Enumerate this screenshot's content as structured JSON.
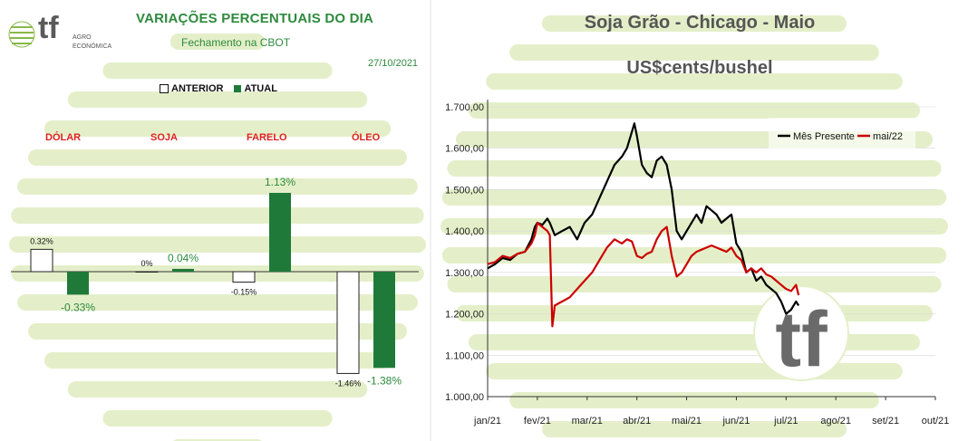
{
  "left": {
    "logo": {
      "letters": "tf",
      "line1": "AGRO",
      "line2": "ECONÔMICA"
    },
    "title": "VARIAÇÕES PERCENTUAIS DO DIA",
    "subtitle": "Fechamento na CBOT",
    "date": "27/10/2021",
    "legend": {
      "anterior": "ANTERIOR",
      "atual": "ATUAL"
    },
    "colors": {
      "atual": "#1f7a3a",
      "anterior": "#ffffff",
      "category": "#e02020",
      "title": "#2e8a3e"
    }
  },
  "right": {
    "title": "Soja Grão - Chicago - Maio",
    "subtitle": "US$cents/bushel",
    "colors": {
      "mes_presente": "#000000",
      "mai22": "#cc0000"
    }
  },
  "chart_data": [
    {
      "type": "bar",
      "categories": [
        "DÓLAR",
        "SOJA",
        "FARELO",
        "ÓLEO"
      ],
      "series": [
        {
          "name": "ANTERIOR",
          "values": [
            0.32,
            0.0,
            -0.15,
            -1.46
          ],
          "labels": [
            "0.32%",
            "0%",
            "-0.15%",
            "-1.46%"
          ]
        },
        {
          "name": "ATUAL",
          "values": [
            -0.33,
            0.04,
            1.13,
            -1.38
          ],
          "labels": [
            "-0.33%",
            "0.04%",
            "1.13%",
            "-1.38%"
          ]
        }
      ],
      "ylim": [
        -1.6,
        1.4
      ]
    },
    {
      "type": "line",
      "x_ticks": [
        "jan/21",
        "fev/21",
        "mar/21",
        "abr/21",
        "mai/21",
        "jun/21",
        "jul/21",
        "ago/21",
        "set/21",
        "out/21"
      ],
      "y_ticks": [
        "1.000,00",
        "1.100,00",
        "1.200,00",
        "1.300,00",
        "1.400,00",
        "1.500,00",
        "1.600,00",
        "1.700,00"
      ],
      "ylim": [
        1000,
        1700
      ],
      "legend_position": "top-right",
      "series": [
        {
          "name": "Mês Presente",
          "points": [
            [
              0.0,
              1310
            ],
            [
              0.15,
              1320
            ],
            [
              0.3,
              1335
            ],
            [
              0.45,
              1330
            ],
            [
              0.6,
              1345
            ],
            [
              0.75,
              1350
            ],
            [
              0.88,
              1380
            ],
            [
              0.95,
              1410
            ],
            [
              1.0,
              1420
            ],
            [
              1.1,
              1415
            ],
            [
              1.2,
              1430
            ],
            [
              1.25,
              1420
            ],
            [
              1.35,
              1390
            ],
            [
              1.5,
              1400
            ],
            [
              1.65,
              1410
            ],
            [
              1.8,
              1380
            ],
            [
              1.95,
              1420
            ],
            [
              2.1,
              1440
            ],
            [
              2.25,
              1480
            ],
            [
              2.4,
              1520
            ],
            [
              2.55,
              1560
            ],
            [
              2.7,
              1580
            ],
            [
              2.8,
              1600
            ],
            [
              2.9,
              1640
            ],
            [
              2.95,
              1660
            ],
            [
              3.0,
              1630
            ],
            [
              3.1,
              1560
            ],
            [
              3.2,
              1540
            ],
            [
              3.3,
              1530
            ],
            [
              3.4,
              1570
            ],
            [
              3.5,
              1580
            ],
            [
              3.6,
              1560
            ],
            [
              3.7,
              1500
            ],
            [
              3.8,
              1400
            ],
            [
              3.9,
              1380
            ],
            [
              4.0,
              1400
            ],
            [
              4.1,
              1420
            ],
            [
              4.2,
              1440
            ],
            [
              4.3,
              1420
            ],
            [
              4.4,
              1460
            ],
            [
              4.5,
              1450
            ],
            [
              4.6,
              1440
            ],
            [
              4.7,
              1420
            ],
            [
              4.8,
              1430
            ],
            [
              4.9,
              1440
            ],
            [
              5.0,
              1370
            ],
            [
              5.1,
              1350
            ],
            [
              5.2,
              1300
            ],
            [
              5.3,
              1310
            ],
            [
              5.4,
              1280
            ],
            [
              5.5,
              1290
            ],
            [
              5.6,
              1270
            ],
            [
              5.7,
              1260
            ],
            [
              5.8,
              1250
            ],
            [
              5.9,
              1230
            ],
            [
              6.0,
              1200
            ],
            [
              6.1,
              1210
            ],
            [
              6.2,
              1230
            ],
            [
              6.25,
              1220
            ]
          ]
        },
        {
          "name": "mai/22",
          "points": [
            [
              0.0,
              1320
            ],
            [
              0.15,
              1325
            ],
            [
              0.3,
              1340
            ],
            [
              0.45,
              1335
            ],
            [
              0.6,
              1345
            ],
            [
              0.75,
              1350
            ],
            [
              0.88,
              1370
            ],
            [
              0.95,
              1390
            ],
            [
              1.0,
              1420
            ],
            [
              1.1,
              1410
            ],
            [
              1.2,
              1400
            ],
            [
              1.25,
              1390
            ],
            [
              1.3,
              1170
            ],
            [
              1.35,
              1220
            ],
            [
              1.5,
              1230
            ],
            [
              1.65,
              1240
            ],
            [
              1.8,
              1260
            ],
            [
              1.95,
              1280
            ],
            [
              2.1,
              1300
            ],
            [
              2.25,
              1330
            ],
            [
              2.4,
              1360
            ],
            [
              2.55,
              1380
            ],
            [
              2.7,
              1370
            ],
            [
              2.8,
              1380
            ],
            [
              2.9,
              1375
            ],
            [
              3.0,
              1340
            ],
            [
              3.1,
              1335
            ],
            [
              3.2,
              1345
            ],
            [
              3.3,
              1350
            ],
            [
              3.4,
              1380
            ],
            [
              3.5,
              1400
            ],
            [
              3.6,
              1410
            ],
            [
              3.7,
              1340
            ],
            [
              3.8,
              1290
            ],
            [
              3.9,
              1300
            ],
            [
              4.0,
              1320
            ],
            [
              4.1,
              1340
            ],
            [
              4.2,
              1350
            ],
            [
              4.3,
              1355
            ],
            [
              4.4,
              1360
            ],
            [
              4.5,
              1365
            ],
            [
              4.6,
              1360
            ],
            [
              4.7,
              1355
            ],
            [
              4.8,
              1350
            ],
            [
              4.9,
              1360
            ],
            [
              5.0,
              1340
            ],
            [
              5.1,
              1330
            ],
            [
              5.2,
              1300
            ],
            [
              5.3,
              1310
            ],
            [
              5.4,
              1300
            ],
            [
              5.5,
              1310
            ],
            [
              5.6,
              1295
            ],
            [
              5.7,
              1290
            ],
            [
              5.8,
              1280
            ],
            [
              5.9,
              1270
            ],
            [
              6.0,
              1260
            ],
            [
              6.1,
              1255
            ],
            [
              6.2,
              1270
            ],
            [
              6.25,
              1245
            ]
          ]
        }
      ]
    }
  ]
}
